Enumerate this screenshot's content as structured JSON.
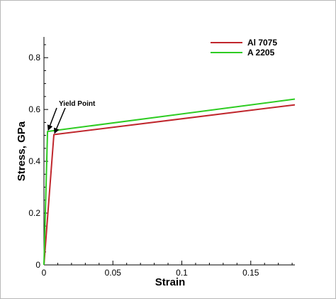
{
  "chart_data": {
    "type": "line",
    "xlabel": "Strain",
    "ylabel": "Stress, GPa",
    "xlim": [
      0,
      0.182
    ],
    "ylim": [
      0,
      0.88
    ],
    "x_ticks": [
      0,
      0.05,
      0.1,
      0.15
    ],
    "x_tick_labels": [
      "0",
      "0.05",
      "0.1",
      "0.15"
    ],
    "y_ticks": [
      0,
      0.2,
      0.4,
      0.6,
      0.8
    ],
    "y_tick_labels": [
      "0",
      "0.2",
      "0.4",
      "0.6",
      "0.8"
    ],
    "grid": false,
    "legend_position": "top-right",
    "series": [
      {
        "name": "Al 7075",
        "color": "#c0272d",
        "points": [
          [
            0,
            0
          ],
          [
            0.0072,
            0.503
          ],
          [
            0.182,
            0.618
          ]
        ]
      },
      {
        "name": "A 2205",
        "color": "#2ecc22",
        "points": [
          [
            0,
            0
          ],
          [
            0.0026,
            0.515
          ],
          [
            0.182,
            0.64
          ]
        ]
      }
    ],
    "annotations": [
      {
        "text": "Yield Point",
        "arrows_to": [
          [
            0.0026,
            0.515
          ],
          [
            0.0072,
            0.503
          ]
        ]
      }
    ]
  }
}
